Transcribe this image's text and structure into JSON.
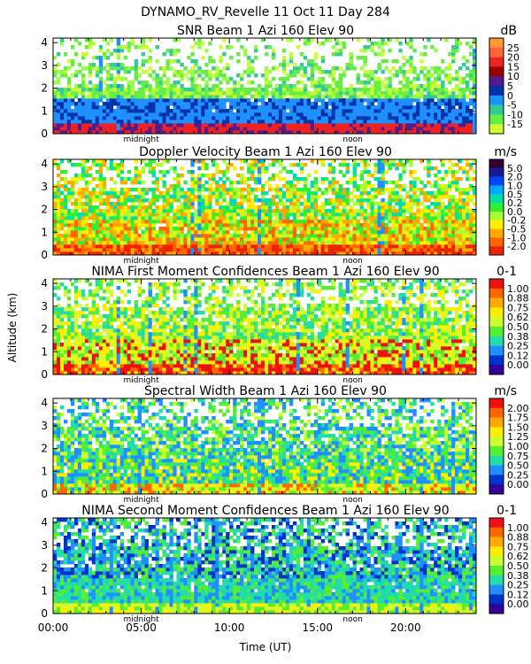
{
  "figure": {
    "title": "DYNAMO_RV_Revelle   11 Oct 11 Day 284",
    "ylabel": "Altitude (km)",
    "xlabel": "Time (UT)",
    "x_ticks": [
      "00:00",
      "05:00",
      "10:00",
      "15:00",
      "20:00"
    ],
    "midnight_label": "midnight",
    "noon_label": "noon"
  },
  "chart_data": [
    {
      "type": "heatmap",
      "title": "SNR Beam 1 Azi 160 Elev 90",
      "units": "dB",
      "xlim": [
        0,
        24
      ],
      "ylim": [
        0,
        4.2
      ],
      "y_ticks": [
        "0",
        "1",
        "2",
        "3",
        "4"
      ],
      "colorbar_labels": [
        "25",
        "20",
        "15",
        "10",
        "5",
        "0",
        "-5",
        "-10",
        "-15"
      ],
      "colorbar_colors": [
        "#ff9933",
        "#ff6633",
        "#ee2222",
        "#990000",
        "#551a8b",
        "#0033aa",
        "#1e90ff",
        "#33cc99",
        "#66ee44",
        "#ccff33"
      ],
      "grid": false
    },
    {
      "type": "heatmap",
      "title": "Doppler Velocity Beam 1 Azi 160 Elev 90",
      "units": "m/s",
      "xlim": [
        0,
        24
      ],
      "ylim": [
        0,
        4.2
      ],
      "y_ticks": [
        "0",
        "1",
        "2",
        "3",
        "4"
      ],
      "colorbar_labels": [
        "5.0",
        "2.0",
        "1.0",
        "0.5",
        "0.2",
        "0.0",
        "-0.2",
        "-0.5",
        "-1.0",
        "-2.0"
      ],
      "colorbar_colors": [
        "#330033",
        "#1a1a99",
        "#0044ff",
        "#00aaff",
        "#00ddaa",
        "#33ee33",
        "#aaff33",
        "#ffee00",
        "#ffaa00",
        "#ff6600",
        "#ee2200"
      ],
      "grid": false
    },
    {
      "type": "heatmap",
      "title": "NIMA First Moment Confidences Beam 1 Azi 160 Elev 90",
      "units": "0-1",
      "xlim": [
        0,
        24
      ],
      "ylim": [
        0,
        4.2
      ],
      "y_ticks": [
        "0",
        "1",
        "2",
        "3",
        "4"
      ],
      "colorbar_labels": [
        "1.00",
        "0.88",
        "0.75",
        "0.62",
        "0.50",
        "0.38",
        "0.25",
        "0.12",
        "0.00"
      ],
      "colorbar_colors": [
        "#ee1111",
        "#ff6600",
        "#ffaa00",
        "#ffee00",
        "#ccff33",
        "#55ee33",
        "#22ddaa",
        "#1e90ff",
        "#0033cc",
        "#330099"
      ],
      "grid": false
    },
    {
      "type": "heatmap",
      "title": "Spectral Width Beam 1 Azi 160 Elev 90",
      "units": "m/s",
      "xlim": [
        0,
        24
      ],
      "ylim": [
        0,
        4.2
      ],
      "y_ticks": [
        "0",
        "1",
        "2",
        "3",
        "4"
      ],
      "colorbar_labels": [
        "2.00",
        "1.75",
        "1.50",
        "1.25",
        "1.00",
        "0.75",
        "0.50",
        "0.25",
        "0.00"
      ],
      "colorbar_colors": [
        "#ee1111",
        "#ff6600",
        "#ffaa00",
        "#ffee00",
        "#ccff33",
        "#55ee33",
        "#22ddaa",
        "#1e90ff",
        "#0033cc",
        "#330099"
      ],
      "grid": false
    },
    {
      "type": "heatmap",
      "title": "NIMA Second Moment Confidences Beam 1 Azi 160 Elev 90",
      "units": "0-1",
      "xlim": [
        0,
        24
      ],
      "ylim": [
        0,
        4.2
      ],
      "y_ticks": [
        "0",
        "1",
        "2",
        "3",
        "4"
      ],
      "colorbar_labels": [
        "1.00",
        "0.88",
        "0.75",
        "0.62",
        "0.50",
        "0.38",
        "0.25",
        "0.12",
        "0.00"
      ],
      "colorbar_colors": [
        "#ee1111",
        "#ff6600",
        "#ffaa00",
        "#ffee00",
        "#ccff33",
        "#55ee33",
        "#22ddaa",
        "#1e90ff",
        "#0033cc",
        "#330099"
      ],
      "grid": false
    }
  ]
}
